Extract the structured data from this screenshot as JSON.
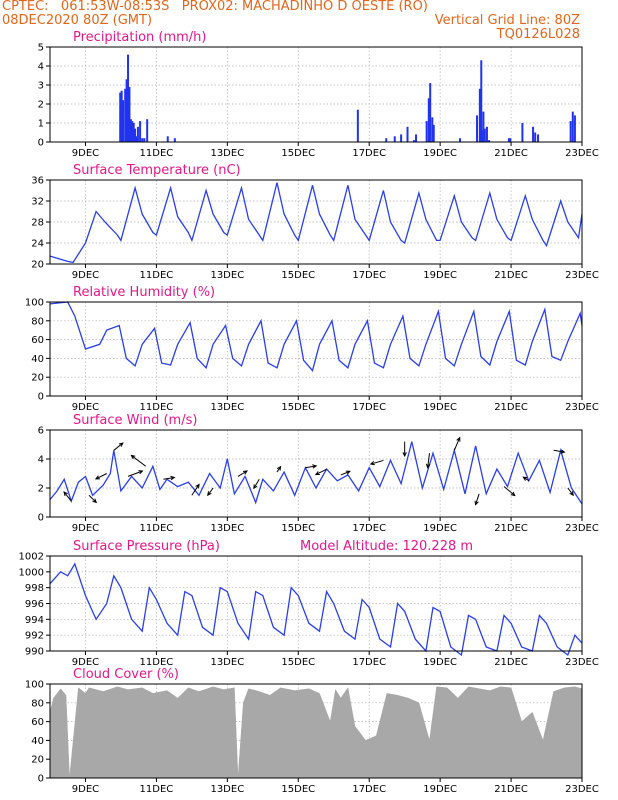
{
  "header": {
    "line1_left": "CPTEC:   061:53W-08:53S   PROX02: MACHADINHO D OESTE (RO)",
    "line2_left": "08DEC2020 80Z (GMT)",
    "line2_right": "Vertical Grid Line: 80Z",
    "line3_right": "TQ0126L028"
  },
  "x_ticks": [
    "9DEC",
    "11DEC",
    "13DEC",
    "15DEC",
    "17DEC",
    "19DEC",
    "21DEC",
    "23DEC"
  ],
  "x_tick_days": [
    9,
    11,
    13,
    15,
    17,
    19,
    21,
    23
  ],
  "x_range_days": [
    8,
    23
  ],
  "colors": {
    "header": "#e0661c",
    "title": "#e0198a",
    "line": "#2a3fe6",
    "bar": "#2233ee",
    "cloud": "#a8a8a8",
    "arrow": "#000000"
  },
  "chart_data": [
    {
      "type": "bar",
      "title": "Precipitation (mm/h)",
      "ylim": [
        0,
        5
      ],
      "yticks": [
        0,
        1,
        2,
        3,
        4,
        5
      ],
      "grid": true,
      "x_day": [
        9.98,
        10.02,
        10.06,
        10.12,
        10.16,
        10.2,
        10.24,
        10.28,
        10.32,
        10.36,
        10.4,
        10.44,
        10.48,
        10.54,
        10.6,
        10.66,
        10.74,
        11.32,
        11.52,
        16.68,
        17.48,
        17.72,
        17.9,
        18.08,
        18.26,
        18.32,
        18.62,
        18.68,
        18.72,
        18.78,
        18.82,
        19.56,
        20.04,
        20.12,
        20.16,
        20.18,
        20.22,
        20.26,
        20.32,
        20.38,
        20.94,
        20.98,
        21.32,
        21.62,
        21.68,
        21.76,
        22.68,
        22.74,
        22.8
      ],
      "values": [
        2.6,
        2.7,
        2.2,
        2.8,
        3.3,
        4.6,
        2.9,
        1.2,
        1.1,
        1.0,
        0.7,
        0.3,
        0.8,
        1.1,
        0.2,
        0.2,
        1.2,
        0.3,
        0.2,
        1.7,
        0.2,
        0.3,
        0.4,
        0.8,
        0.1,
        0.4,
        1.1,
        2.3,
        3.1,
        1.3,
        0.9,
        0.2,
        1.4,
        2.8,
        4.3,
        0.6,
        1.6,
        0.7,
        0.8,
        0.1,
        0.2,
        0.2,
        1.0,
        0.8,
        0.5,
        0.4,
        1.1,
        1.6,
        1.4
      ]
    },
    {
      "type": "line",
      "title": "Surface Temperature (nC)",
      "ylim": [
        20,
        36
      ],
      "yticks": [
        20,
        24,
        28,
        32,
        36
      ],
      "grid": true,
      "x_day": [
        8,
        8.25,
        8.5,
        8.65,
        9,
        9.3,
        9.55,
        9.9,
        10,
        10.4,
        10.6,
        10.9,
        11,
        11.4,
        11.6,
        11.9,
        12,
        12.4,
        12.6,
        12.9,
        13,
        13.4,
        13.6,
        13.9,
        14,
        14.4,
        14.6,
        14.9,
        15,
        15.4,
        15.6,
        15.9,
        16,
        16.4,
        16.6,
        16.9,
        17,
        17.4,
        17.6,
        17.9,
        18,
        18.4,
        18.6,
        18.9,
        19,
        19.4,
        19.6,
        19.9,
        20,
        20.4,
        20.6,
        20.9,
        21,
        21.4,
        21.6,
        21.9,
        22,
        22.4,
        22.6,
        22.9,
        23
      ],
      "values": [
        21.5,
        21,
        20.5,
        20.3,
        24,
        30,
        28,
        25.5,
        24.5,
        34.5,
        29.5,
        26,
        25.5,
        34.5,
        29,
        26,
        24.5,
        34,
        29.5,
        26,
        25.5,
        34.5,
        28.5,
        25.5,
        24.5,
        35.5,
        29.5,
        25.5,
        24.5,
        35,
        29.5,
        25.5,
        24.5,
        35,
        28.5,
        25.5,
        24.5,
        34,
        28,
        24.5,
        24,
        33.5,
        28.5,
        24.5,
        24.5,
        33,
        28,
        25,
        24.5,
        33.5,
        28.5,
        25,
        24.5,
        33,
        28.5,
        24.5,
        23.5,
        32,
        28,
        25,
        29.5
      ]
    },
    {
      "type": "line",
      "title": "Relative Humidity (%)",
      "ylim": [
        0,
        100
      ],
      "yticks": [
        0,
        20,
        40,
        60,
        80,
        100
      ],
      "grid": true,
      "x_day": [
        8,
        8.5,
        8.7,
        9,
        9.4,
        9.6,
        9.95,
        10.15,
        10.4,
        10.6,
        10.95,
        11.15,
        11.4,
        11.6,
        11.95,
        12.15,
        12.4,
        12.6,
        12.95,
        13.15,
        13.4,
        13.6,
        13.95,
        14.15,
        14.4,
        14.6,
        14.95,
        15.15,
        15.4,
        15.6,
        15.95,
        16.15,
        16.4,
        16.6,
        16.95,
        17.15,
        17.4,
        17.6,
        17.95,
        18.15,
        18.4,
        18.6,
        18.95,
        19.15,
        19.4,
        19.6,
        19.95,
        20.15,
        20.4,
        20.6,
        20.95,
        21.15,
        21.4,
        21.6,
        21.95,
        22.15,
        22.4,
        22.6,
        22.95,
        23
      ],
      "values": [
        98,
        100,
        85,
        50,
        55,
        70,
        75,
        40,
        32,
        55,
        72,
        35,
        33,
        55,
        78,
        40,
        30,
        55,
        75,
        40,
        32,
        55,
        80,
        35,
        30,
        55,
        80,
        38,
        27,
        55,
        80,
        38,
        30,
        55,
        80,
        35,
        30,
        55,
        85,
        40,
        32,
        55,
        90,
        40,
        32,
        55,
        90,
        42,
        33,
        58,
        90,
        38,
        33,
        58,
        92,
        42,
        38,
        58,
        88,
        75
      ]
    },
    {
      "type": "line",
      "title": "Surface Wind (m/s)",
      "ylim": [
        0,
        6
      ],
      "yticks": [
        0,
        2,
        4,
        6
      ],
      "grid": true,
      "x_day": [
        8,
        8.2,
        8.4,
        8.6,
        8.8,
        9,
        9.2,
        9.5,
        9.7,
        9.8,
        10,
        10.3,
        10.6,
        10.9,
        11.1,
        11.3,
        11.6,
        11.9,
        12.2,
        12.5,
        12.8,
        13,
        13.2,
        13.5,
        13.8,
        14,
        14.3,
        14.6,
        14.9,
        15.2,
        15.5,
        15.8,
        16.1,
        16.4,
        16.7,
        17,
        17.3,
        17.6,
        17.9,
        18.2,
        18.5,
        18.8,
        19.1,
        19.4,
        19.7,
        20,
        20.3,
        20.6,
        20.9,
        21.2,
        21.5,
        21.8,
        22.1,
        22.4,
        22.7,
        23
      ],
      "values": [
        1.2,
        1.8,
        2.6,
        1.1,
        2.4,
        2.8,
        1.5,
        2.2,
        3.0,
        4.6,
        1.8,
        2.8,
        2.0,
        3.5,
        1.9,
        2.6,
        2.1,
        2.4,
        1.5,
        3.0,
        2.0,
        4.0,
        1.6,
        2.8,
        1.0,
        2.6,
        1.8,
        3.1,
        1.5,
        3.4,
        2.0,
        3.3,
        2.5,
        2.9,
        1.8,
        3.4,
        2.1,
        3.9,
        2.3,
        5.2,
        2.0,
        4.4,
        1.9,
        4.6,
        1.6,
        4.9,
        1.6,
        3.3,
        2.1,
        4.4,
        2.5,
        3.9,
        1.7,
        4.6,
        2.0,
        0.9
      ],
      "arrows": {
        "x_day": [
          8.6,
          9.1,
          9.6,
          9.8,
          10.2,
          10.7,
          11.2,
          12.0,
          12.6,
          13.3,
          13.9,
          14.4,
          15.2,
          15.8,
          16.2,
          17.4,
          18.0,
          18.7,
          19.4,
          20.1,
          20.8,
          21.5,
          22.2,
          22.6
        ],
        "u": [
          -0.4,
          0.4,
          -0.6,
          0.5,
          0.8,
          -0.8,
          0.6,
          0.4,
          -0.3,
          0.5,
          -0.3,
          0.2,
          0.6,
          -0.6,
          0.5,
          -0.7,
          0.0,
          -0.1,
          0.3,
          -0.2,
          0.6,
          -0.3,
          0.6,
          0.3
        ],
        "v": [
          0.5,
          -0.4,
          -0.3,
          0.4,
          0.3,
          0.6,
          0.1,
          0.6,
          -0.4,
          0.3,
          -0.5,
          0.3,
          0.1,
          -0.3,
          0.2,
          -0.2,
          -0.8,
          -0.8,
          0.7,
          -0.6,
          -0.5,
          0.2,
          -0.1,
          -0.4
        ]
      }
    },
    {
      "type": "line",
      "title": "Surface Pressure (hPa)",
      "annotation": "Model Altitude: 120.228  m",
      "ylim": [
        990,
        1002
      ],
      "yticks": [
        990,
        992,
        994,
        996,
        998,
        1000,
        1002
      ],
      "grid": true,
      "x_day": [
        8,
        8.3,
        8.5,
        8.7,
        9,
        9.3,
        9.6,
        9.8,
        10,
        10.3,
        10.6,
        10.8,
        11,
        11.3,
        11.6,
        11.8,
        12,
        12.3,
        12.6,
        12.8,
        13,
        13.3,
        13.6,
        13.8,
        14,
        14.3,
        14.6,
        14.8,
        15,
        15.3,
        15.6,
        15.8,
        16,
        16.3,
        16.6,
        16.8,
        17,
        17.3,
        17.6,
        17.8,
        18,
        18.3,
        18.6,
        18.8,
        19,
        19.3,
        19.6,
        19.8,
        20,
        20.3,
        20.6,
        20.8,
        21,
        21.3,
        21.6,
        21.8,
        22,
        22.3,
        22.6,
        22.8,
        23
      ],
      "values": [
        998.5,
        1000,
        999.5,
        1001,
        997,
        994,
        996,
        999.5,
        998,
        994,
        992.5,
        998,
        996.5,
        993.5,
        992,
        997.5,
        997,
        993,
        992,
        998,
        997.5,
        993.5,
        991.5,
        997.5,
        997,
        993,
        992,
        998,
        997,
        993.5,
        992.5,
        997.5,
        996,
        992.5,
        991.5,
        996.5,
        995.5,
        991.5,
        990.5,
        996,
        995,
        991.5,
        990,
        995.5,
        995,
        990.5,
        989.5,
        994.5,
        994,
        990.5,
        990,
        994.5,
        993.5,
        990.5,
        990,
        994.5,
        993.5,
        990.5,
        989.5,
        992,
        991
      ]
    },
    {
      "type": "area",
      "title": "Cloud Cover (%)",
      "ylim": [
        0,
        100
      ],
      "yticks": [
        0,
        20,
        40,
        60,
        80,
        100
      ],
      "grid": true,
      "x_day": [
        8,
        8.1,
        8.3,
        8.45,
        8.55,
        8.8,
        9.0,
        9.1,
        9.5,
        9.9,
        10.2,
        10.6,
        10.9,
        11.3,
        11.6,
        11.9,
        12.2,
        12.6,
        12.9,
        13.2,
        13.3,
        13.45,
        13.6,
        13.9,
        14.2,
        14.5,
        14.9,
        15.3,
        15.6,
        15.9,
        16.05,
        16.2,
        16.4,
        16.6,
        16.9,
        17.2,
        17.5,
        17.8,
        18.1,
        18.4,
        18.7,
        18.9,
        19.2,
        19.5,
        19.8,
        20.1,
        20.4,
        20.7,
        21.0,
        21.3,
        21.6,
        21.9,
        22.2,
        22.5,
        22.8,
        23
      ],
      "values": [
        70,
        85,
        95,
        88,
        0,
        96,
        90,
        96,
        92,
        97,
        94,
        96,
        90,
        93,
        85,
        96,
        92,
        97,
        94,
        96,
        0,
        80,
        95,
        92,
        88,
        96,
        93,
        95,
        90,
        60,
        94,
        85,
        96,
        55,
        40,
        45,
        90,
        88,
        85,
        80,
        40,
        97,
        96,
        85,
        97,
        95,
        93,
        97,
        96,
        60,
        70,
        40,
        92,
        96,
        97,
        95
      ]
    }
  ]
}
